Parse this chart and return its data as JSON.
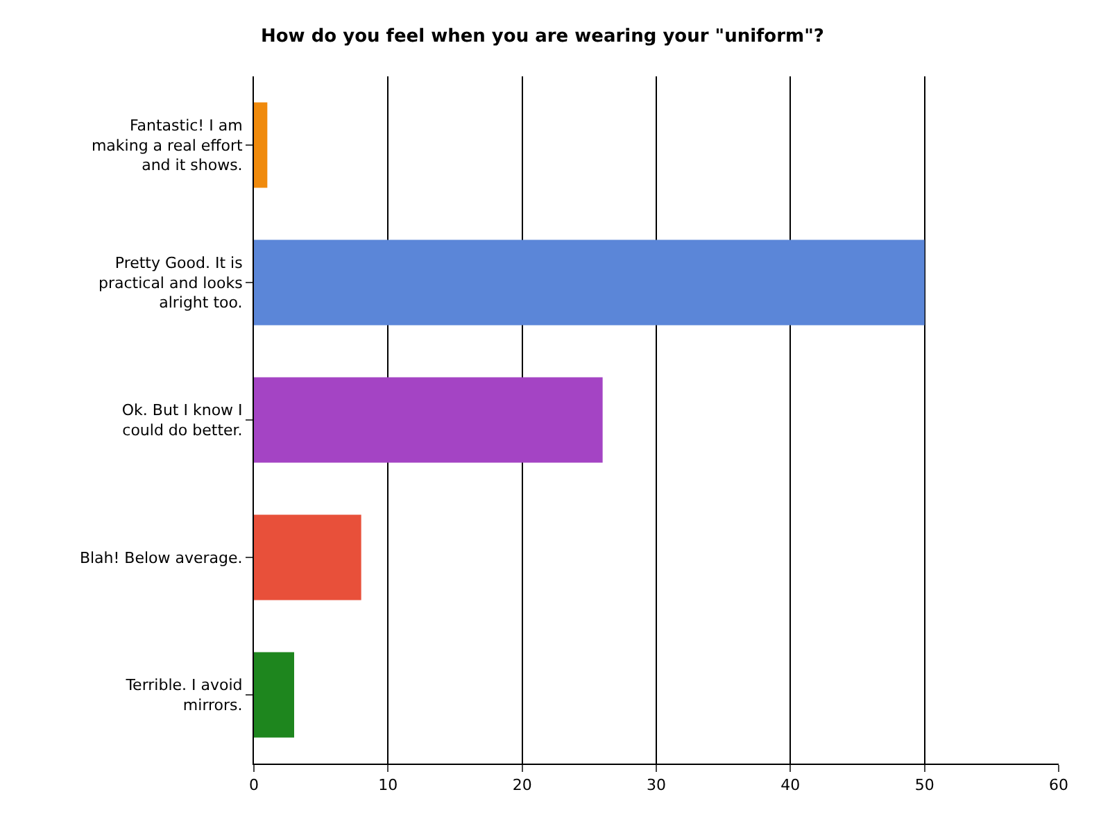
{
  "chart_data": {
    "type": "bar",
    "orientation": "horizontal",
    "title": "How do you feel when you are wearing your \"uniform\"?",
    "categories": [
      "Fantastic! I am making a real effort and it shows.",
      "Pretty Good. It is practical and looks alright too.",
      "Ok. But I know I could do better.",
      "Blah! Below average.",
      "Terrible. I avoid mirrors."
    ],
    "values": [
      1,
      50,
      26,
      8,
      3
    ],
    "colors": [
      "#f08a0c",
      "#5b86d8",
      "#a444c4",
      "#e8503a",
      "#1e861e"
    ],
    "xlim": [
      0,
      60
    ],
    "xticks": [
      0,
      10,
      20,
      30,
      40,
      50,
      60
    ],
    "grid": "x",
    "legend": false
  }
}
